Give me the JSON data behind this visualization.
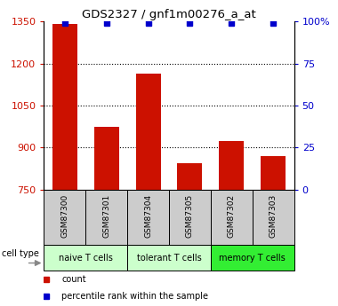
{
  "title": "GDS2327 / gnf1m00276_a_at",
  "samples": [
    "GSM87300",
    "GSM87301",
    "GSM87304",
    "GSM87305",
    "GSM87302",
    "GSM87303"
  ],
  "counts": [
    1340,
    975,
    1165,
    845,
    925,
    870
  ],
  "percentiles": [
    99,
    99,
    99,
    99,
    99,
    99
  ],
  "ylim_left": [
    750,
    1350
  ],
  "ylim_right": [
    0,
    100
  ],
  "yticks_left": [
    750,
    900,
    1050,
    1200,
    1350
  ],
  "yticks_right": [
    0,
    25,
    50,
    75,
    100
  ],
  "bar_color": "#cc1100",
  "percentile_color": "#0000cc",
  "cell_groups": [
    {
      "label": "naive T cells",
      "indices": [
        0,
        1
      ],
      "color": "#ccffcc"
    },
    {
      "label": "tolerant T cells",
      "indices": [
        2,
        3
      ],
      "color": "#ccffcc"
    },
    {
      "label": "memory T cells",
      "indices": [
        4,
        5
      ],
      "color": "#33ee33"
    }
  ],
  "grid_color": "#000000",
  "sample_box_color": "#cccccc",
  "left_tick_color": "#cc1100",
  "right_tick_color": "#0000cc"
}
